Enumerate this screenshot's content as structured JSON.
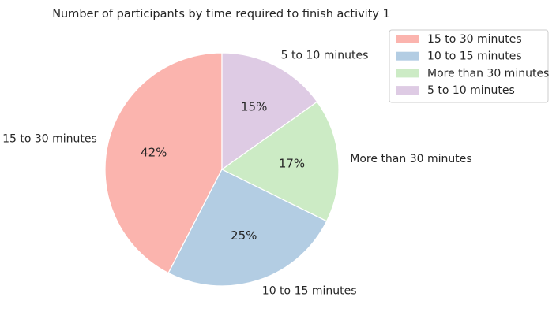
{
  "chart_data": {
    "type": "pie",
    "title": "Number of participants by time required to finish activity 1",
    "slices": [
      {
        "label": "15 to 30 minutes",
        "percent": 42,
        "pct_label": "42%",
        "color": "#fbb4ae"
      },
      {
        "label": "10 to 15 minutes",
        "percent": 25,
        "pct_label": "25%",
        "color": "#b3cde3"
      },
      {
        "label": "More than 30 minutes",
        "percent": 17,
        "pct_label": "17%",
        "color": "#ccebc5"
      },
      {
        "label": "5 to 10 minutes",
        "percent": 15,
        "pct_label": "15%",
        "color": "#decbe4"
      }
    ],
    "legend_placement": "top-right",
    "legend": [
      "15 to 30 minutes",
      "10 to 15 minutes",
      "More than 30 minutes",
      "5 to 10 minutes"
    ]
  }
}
